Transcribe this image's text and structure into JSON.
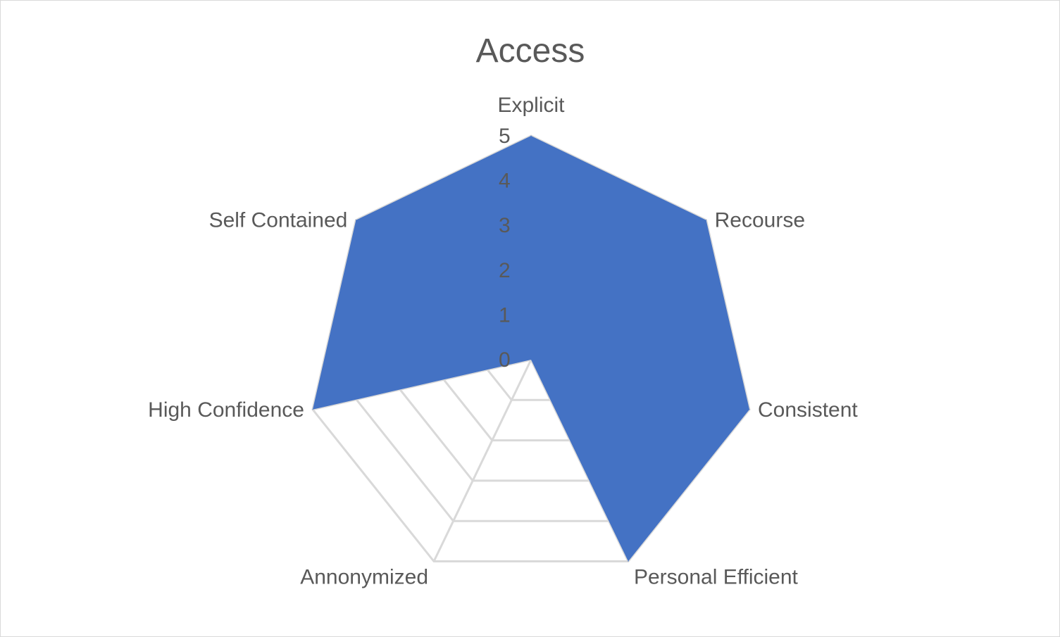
{
  "chart_data": {
    "type": "radar",
    "title": "Access",
    "categories": [
      "Explicit",
      "Recourse",
      "Consistent",
      "Personal Efficient",
      "Annonymized",
      "High Confidence",
      "Self Contained"
    ],
    "series": [
      {
        "values": [
          5,
          5,
          5,
          5,
          0,
          5,
          5
        ],
        "color": "#4472c4"
      }
    ],
    "rlim": [
      0,
      5
    ],
    "ticks": [
      "0",
      "1",
      "2",
      "3",
      "4",
      "5"
    ],
    "grid": true,
    "legend": "none"
  }
}
